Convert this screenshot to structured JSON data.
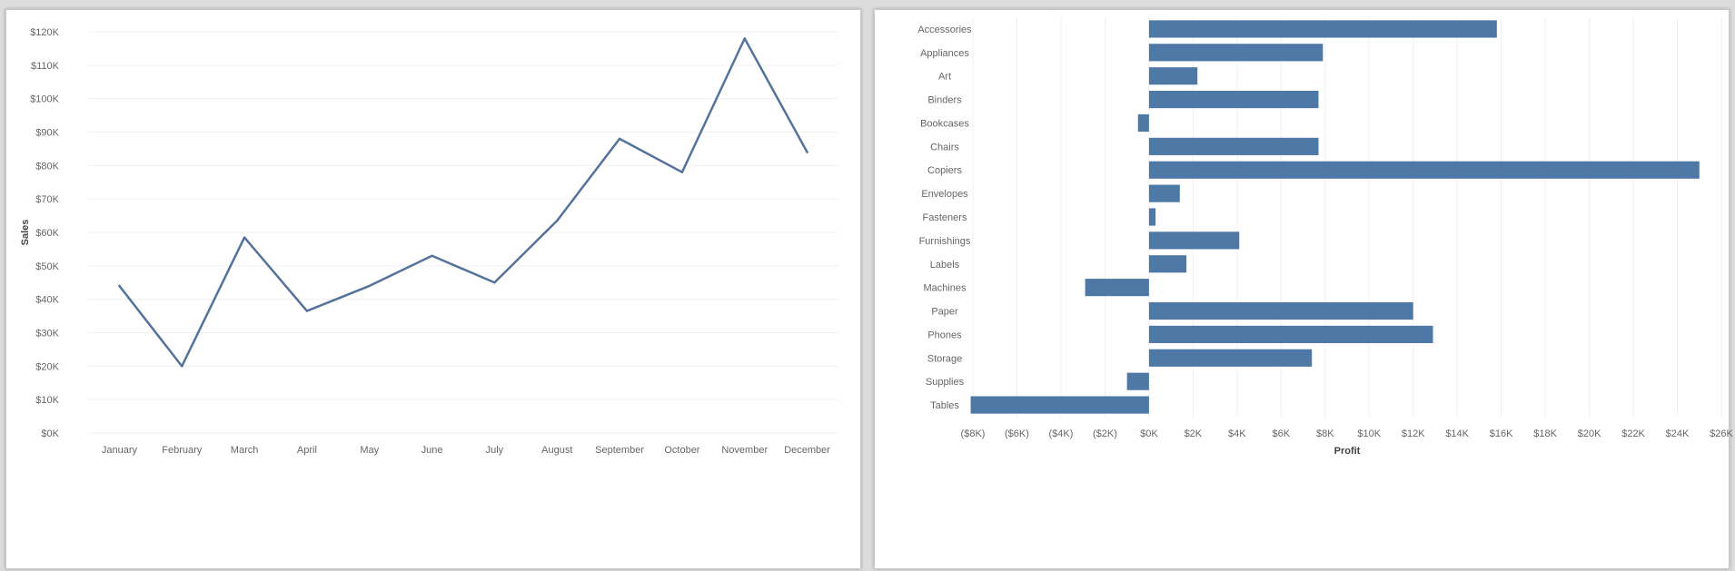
{
  "chart_data": [
    {
      "type": "line",
      "title": "",
      "xlabel": "",
      "ylabel": "Sales",
      "categories": [
        "January",
        "February",
        "March",
        "April",
        "May",
        "June",
        "July",
        "August",
        "September",
        "October",
        "November",
        "December"
      ],
      "values": [
        44000,
        20000,
        58500,
        36500,
        44000,
        53000,
        45000,
        63500,
        88000,
        78000,
        118000,
        84000
      ],
      "ylim": [
        0,
        120000
      ],
      "yticks": [
        "$0K",
        "$10K",
        "$20K",
        "$30K",
        "$40K",
        "$50K",
        "$60K",
        "$70K",
        "$80K",
        "$90K",
        "$100K",
        "$110K",
        "$120K"
      ],
      "ytick_values": [
        0,
        10000,
        20000,
        30000,
        40000,
        50000,
        60000,
        70000,
        80000,
        90000,
        100000,
        110000,
        120000
      ],
      "grid": true,
      "color": "#55739a"
    },
    {
      "type": "bar",
      "orientation": "horizontal",
      "title": "",
      "xlabel": "Profit",
      "ylabel": "",
      "categories": [
        "Accessories",
        "Appliances",
        "Art",
        "Binders",
        "Bookcases",
        "Chairs",
        "Copiers",
        "Envelopes",
        "Fasteners",
        "Furnishings",
        "Labels",
        "Machines",
        "Paper",
        "Phones",
        "Storage",
        "Supplies",
        "Tables"
      ],
      "values": [
        15800,
        7900,
        2200,
        7700,
        -500,
        7700,
        25000,
        1400,
        300,
        4100,
        1700,
        -2900,
        12000,
        12900,
        7400,
        -1000,
        -8100
      ],
      "xlim": [
        -8000,
        26000
      ],
      "xticks": [
        "($8K)",
        "($6K)",
        "($4K)",
        "($2K)",
        "$0K",
        "$2K",
        "$4K",
        "$6K",
        "$8K",
        "$10K",
        "$12K",
        "$14K",
        "$16K",
        "$18K",
        "$20K",
        "$22K",
        "$24K",
        "$26K"
      ],
      "xtick_values": [
        -8000,
        -6000,
        -4000,
        -2000,
        0,
        2000,
        4000,
        6000,
        8000,
        10000,
        12000,
        14000,
        16000,
        18000,
        20000,
        22000,
        24000,
        26000
      ],
      "grid": true,
      "color": "#4e79a7"
    }
  ]
}
